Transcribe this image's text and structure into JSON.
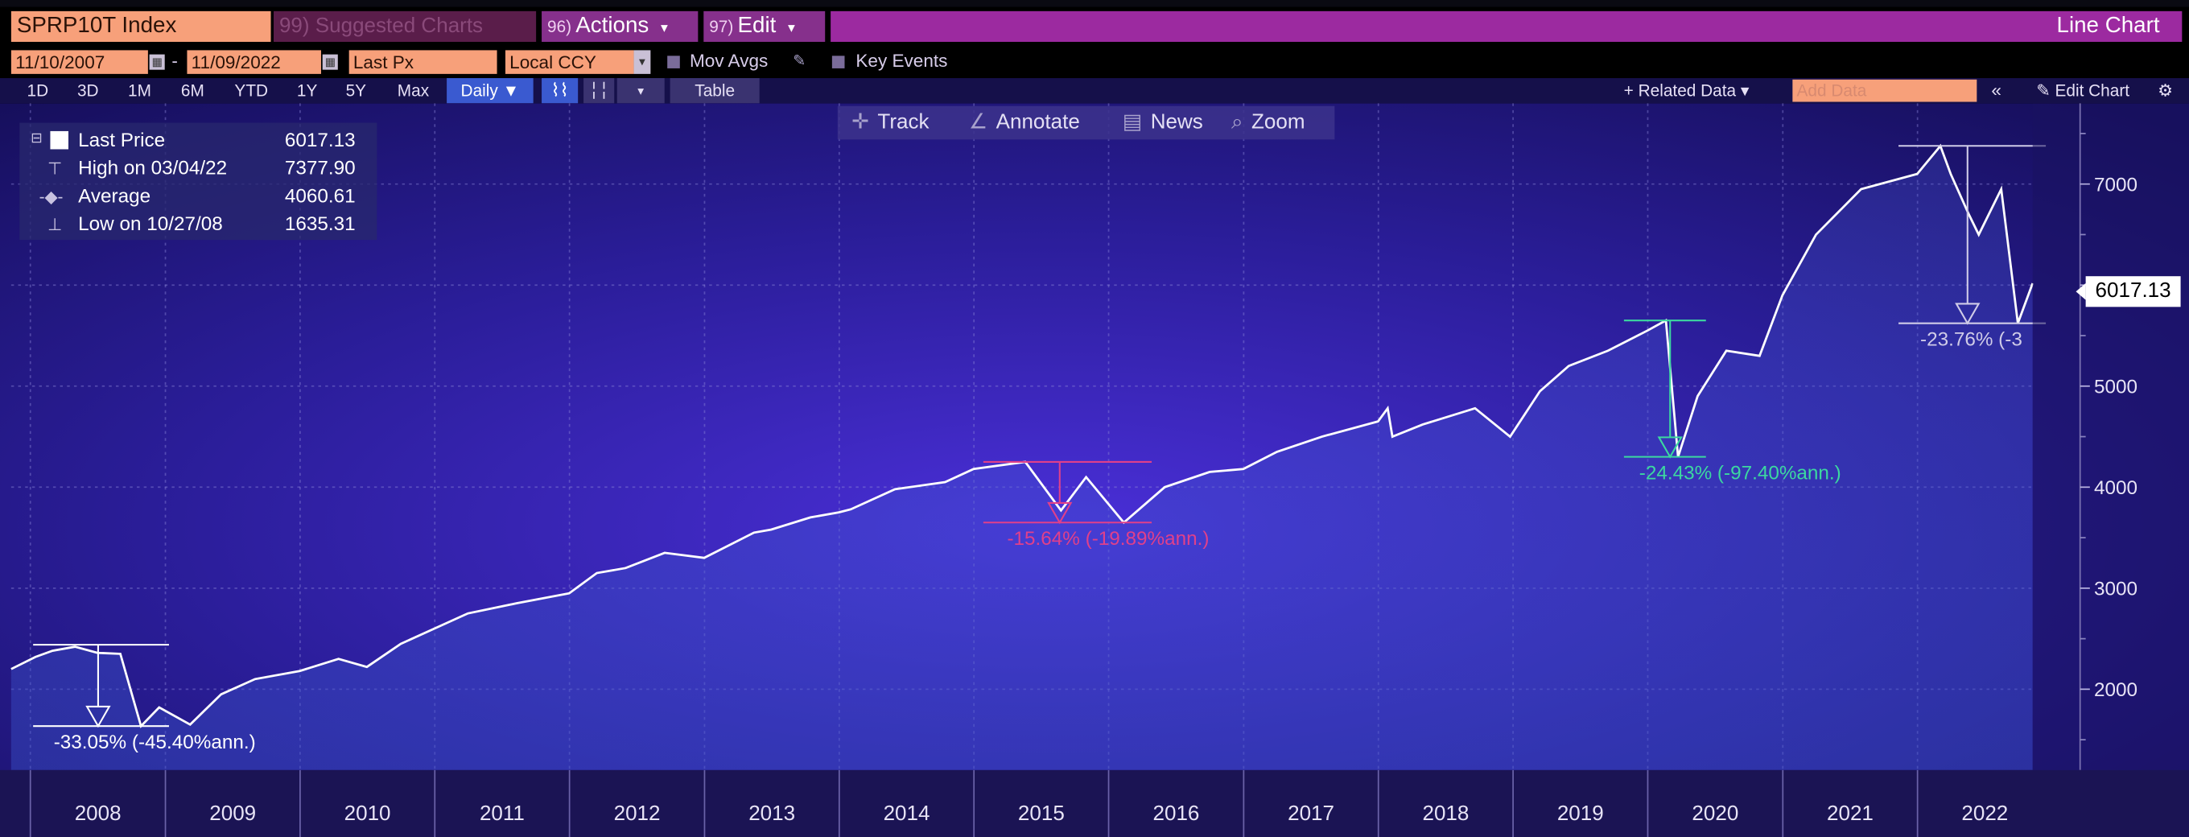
{
  "window": {
    "ticker": "SPRP10T Index",
    "suggested": "99) Suggested Charts",
    "actions": {
      "num": "96)",
      "label": "Actions",
      "arrow": "▾"
    },
    "edit": {
      "num": "97)",
      "label": "Edit",
      "arrow": "▾"
    },
    "chart_type": "Line Chart"
  },
  "controls": {
    "start_date": "11/10/2007",
    "end_date": "11/09/2022",
    "date_sep": "-",
    "field": "Last Px",
    "currency": "Local CCY",
    "mov_avgs": "Mov Avgs",
    "key_events": "Key Events"
  },
  "periods": [
    "1D",
    "3D",
    "1M",
    "6M",
    "YTD",
    "1Y",
    "5Y",
    "Max"
  ],
  "frequency": "Daily ▼",
  "table_label": "Table",
  "related_data": "+ Related Data ▾",
  "add_data_placeholder": "Add Data",
  "edit_chart": "Edit Chart",
  "chart_toolbar": {
    "track": "Track",
    "annotate": "Annotate",
    "news": "News",
    "zoom": "Zoom"
  },
  "legend": {
    "last_price": {
      "label": "Last Price",
      "value": "6017.13"
    },
    "high": {
      "label": "High on 03/04/22",
      "value": "7377.90"
    },
    "average": {
      "label": "Average",
      "value": "4060.61"
    },
    "low": {
      "label": "Low on 10/27/08",
      "value": "1635.31"
    }
  },
  "price_tag": "6017.13",
  "colors": {
    "accent_magenta": "#9c2aa0",
    "orange": "#f7a07a",
    "drawdown_pink": "#e0408a",
    "drawdown_green": "#3cd8a0",
    "line": "#ffffff"
  },
  "chart_data": {
    "type": "line",
    "x_start": "2007-11-10",
    "x_end": "2022-11-09",
    "ylim": [
      1200,
      7800
    ],
    "yticks": [
      2000,
      3000,
      4000,
      5000,
      6000,
      7000
    ],
    "ytick_labels": [
      "2000",
      "3000",
      "4000",
      "5000",
      "",
      "7000"
    ],
    "year_labels": [
      "2008",
      "2009",
      "2010",
      "2011",
      "2012",
      "2013",
      "2014",
      "2015",
      "2016",
      "2017",
      "2018",
      "2019",
      "2020",
      "2021",
      "2022"
    ],
    "series": [
      {
        "points": [
          [
            "2007-11-10",
            2200
          ],
          [
            "2008-01-15",
            2320
          ],
          [
            "2008-03-01",
            2380
          ],
          [
            "2008-05-01",
            2420
          ],
          [
            "2008-07-01",
            2360
          ],
          [
            "2008-09-01",
            2350
          ],
          [
            "2008-10-27",
            1635
          ],
          [
            "2008-12-15",
            1820
          ],
          [
            "2009-03-09",
            1650
          ],
          [
            "2009-06-01",
            1950
          ],
          [
            "2009-09-01",
            2100
          ],
          [
            "2009-12-31",
            2180
          ],
          [
            "2010-04-15",
            2300
          ],
          [
            "2010-07-01",
            2220
          ],
          [
            "2010-10-01",
            2450
          ],
          [
            "2010-12-31",
            2600
          ],
          [
            "2011-04-01",
            2750
          ],
          [
            "2011-08-10",
            2850
          ],
          [
            "2011-12-31",
            2950
          ],
          [
            "2012-03-15",
            3150
          ],
          [
            "2012-06-01",
            3200
          ],
          [
            "2012-09-15",
            3350
          ],
          [
            "2012-12-31",
            3300
          ],
          [
            "2013-05-15",
            3550
          ],
          [
            "2013-07-01",
            3580
          ],
          [
            "2013-10-15",
            3700
          ],
          [
            "2013-12-31",
            3750
          ],
          [
            "2014-02-01",
            3780
          ],
          [
            "2014-06-01",
            3980
          ],
          [
            "2014-10-15",
            4050
          ],
          [
            "2014-12-31",
            4180
          ],
          [
            "2015-05-20",
            4250
          ],
          [
            "2015-08-25",
            3770
          ],
          [
            "2015-11-01",
            4100
          ],
          [
            "2016-02-11",
            3650
          ],
          [
            "2016-06-01",
            4000
          ],
          [
            "2016-10-01",
            4150
          ],
          [
            "2016-12-31",
            4180
          ],
          [
            "2017-04-01",
            4350
          ],
          [
            "2017-08-01",
            4500
          ],
          [
            "2017-12-31",
            4650
          ],
          [
            "2018-01-26",
            4780
          ],
          [
            "2018-02-08",
            4500
          ],
          [
            "2018-05-01",
            4620
          ],
          [
            "2018-09-20",
            4780
          ],
          [
            "2018-12-24",
            4500
          ],
          [
            "2019-03-15",
            4950
          ],
          [
            "2019-06-01",
            5200
          ],
          [
            "2019-09-15",
            5350
          ],
          [
            "2019-12-31",
            5550
          ],
          [
            "2020-02-19",
            5650
          ],
          [
            "2020-03-23",
            4300
          ],
          [
            "2020-05-15",
            4900
          ],
          [
            "2020-08-01",
            5350
          ],
          [
            "2020-10-30",
            5300
          ],
          [
            "2020-12-31",
            5900
          ],
          [
            "2021-04-01",
            6500
          ],
          [
            "2021-08-01",
            6950
          ],
          [
            "2021-12-31",
            7100
          ],
          [
            "2022-03-04",
            7378
          ],
          [
            "2022-04-01",
            7100
          ],
          [
            "2022-05-20",
            6700
          ],
          [
            "2022-06-16",
            6500
          ],
          [
            "2022-08-16",
            6950
          ],
          [
            "2022-09-30",
            5622
          ],
          [
            "2022-11-09",
            6017
          ]
        ]
      }
    ],
    "annotations": [
      {
        "text": "-33.05% (-45.40%ann.)",
        "color": "#ffffff",
        "peak_date": "2008-05-01",
        "peak": 2440,
        "trough_date": "2008-10-27",
        "trough": 1635
      },
      {
        "text": "-15.64% (-19.89%ann.)",
        "color": "#e0408a",
        "peak_date": "2015-05-20",
        "peak": 4250,
        "trough_date": "2016-02-11",
        "trough": 3650
      },
      {
        "text": "-24.43% (-97.40%ann.)",
        "color": "#3cd8a0",
        "peak_date": "2020-02-19",
        "peak": 5650,
        "trough_date": "2020-03-23",
        "trough": 4300
      },
      {
        "text": "-23.76% (-3",
        "color": "#d0cce8",
        "peak_date": "2022-03-04",
        "peak": 7378,
        "trough_date": "2022-09-30",
        "trough": 5622
      }
    ]
  }
}
